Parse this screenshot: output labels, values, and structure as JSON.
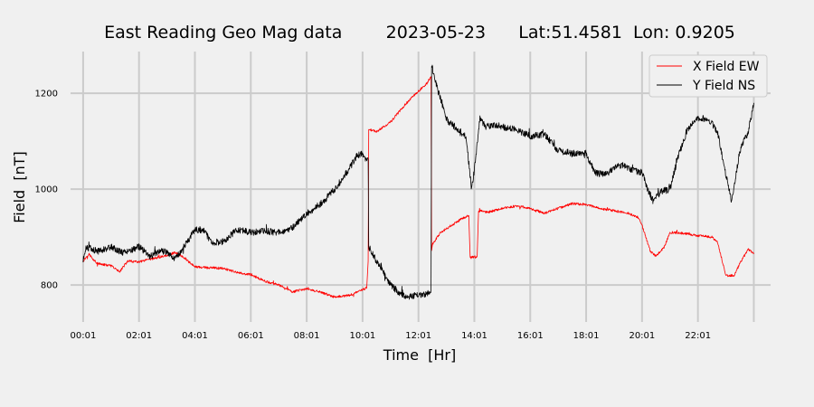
{
  "chart_data": {
    "type": "line",
    "title": "East Reading Geo Mag data        2023-05-23      Lat:51.4581  Lon: 0.9205",
    "xlabel": "Time  [Hr]",
    "ylabel": "Field  [nT]",
    "xlim": [
      -0.45,
      24.6
    ],
    "ylim": [
      723,
      1287
    ],
    "grid": true,
    "legend_position": "top-right",
    "x_ticks": [
      {
        "value": 0,
        "label": "00:01"
      },
      {
        "value": 2,
        "label": "02:01"
      },
      {
        "value": 4,
        "label": "04:01"
      },
      {
        "value": 6,
        "label": "06:01"
      },
      {
        "value": 8,
        "label": "08:01"
      },
      {
        "value": 10,
        "label": "10:01"
      },
      {
        "value": 12,
        "label": "12:01"
      },
      {
        "value": 14,
        "label": "14:01"
      },
      {
        "value": 16,
        "label": "16:01"
      },
      {
        "value": 18,
        "label": "18:01"
      },
      {
        "value": 20,
        "label": "20:01"
      },
      {
        "value": 22,
        "label": "22:01"
      },
      {
        "value": 24,
        "label": ""
      }
    ],
    "y_ticks": [
      {
        "value": 800,
        "label": "800"
      },
      {
        "value": 1000,
        "label": "1000"
      },
      {
        "value": 1200,
        "label": "1200"
      }
    ],
    "series": [
      {
        "name": "X Field EW",
        "color": "#ff0000",
        "x": [
          0,
          0.2,
          0.5,
          1.0,
          1.3,
          1.6,
          2.0,
          2.5,
          3.0,
          3.3,
          3.6,
          4.0,
          4.5,
          5.0,
          5.5,
          6.0,
          6.5,
          7.0,
          7.5,
          8.0,
          8.5,
          9.0,
          9.5,
          10.0,
          10.15,
          10.2,
          10.22,
          10.5,
          11.0,
          11.5,
          12.0,
          12.3,
          12.45,
          12.47,
          12.5,
          12.8,
          13.2,
          13.6,
          13.8,
          13.85,
          14.1,
          14.15,
          14.5,
          15.0,
          15.5,
          16.0,
          16.5,
          17.0,
          17.5,
          18.0,
          18.5,
          19.0,
          19.5,
          19.9,
          20.0,
          20.3,
          20.5,
          20.8,
          21.0,
          21.5,
          22.0,
          22.5,
          22.7,
          23.0,
          23.3,
          23.5,
          23.8,
          24.0
        ],
        "y": [
          850,
          865,
          845,
          840,
          828,
          850,
          848,
          855,
          862,
          868,
          858,
          838,
          836,
          835,
          826,
          822,
          808,
          800,
          786,
          792,
          785,
          775,
          778,
          790,
          795,
          850,
          1125,
          1120,
          1140,
          1175,
          1205,
          1220,
          1235,
          872,
          885,
          910,
          925,
          940,
          945,
          857,
          860,
          955,
          952,
          960,
          965,
          960,
          950,
          960,
          970,
          968,
          960,
          955,
          950,
          940,
          925,
          870,
          860,
          880,
          910,
          908,
          903,
          900,
          890,
          820,
          820,
          845,
          875,
          865
        ]
      },
      {
        "name": "Y Field NS",
        "color": "#000000",
        "x": [
          0,
          0.1,
          0.3,
          0.5,
          1.0,
          1.3,
          1.5,
          2.0,
          2.4,
          2.7,
          3.0,
          3.3,
          3.6,
          4.0,
          4.3,
          4.6,
          5.0,
          5.5,
          6.0,
          6.5,
          7.0,
          7.5,
          8.0,
          8.3,
          8.6,
          9.0,
          9.5,
          9.8,
          10.0,
          10.1,
          10.2,
          10.22,
          10.5,
          11.0,
          11.3,
          11.6,
          12.0,
          12.3,
          12.45,
          12.47,
          12.6,
          13.0,
          13.4,
          13.7,
          13.9,
          14.0,
          14.2,
          14.4,
          14.7,
          15.0,
          15.5,
          16.0,
          16.5,
          17.0,
          17.5,
          18.0,
          18.3,
          18.7,
          19.0,
          19.3,
          19.6,
          20.0,
          20.2,
          20.4,
          20.7,
          21.0,
          21.3,
          21.6,
          22.0,
          22.4,
          22.7,
          23.0,
          23.2,
          23.5,
          23.8,
          24.0
        ],
        "y": [
          850,
          880,
          875,
          870,
          880,
          870,
          868,
          880,
          860,
          870,
          870,
          855,
          880,
          915,
          915,
          890,
          890,
          915,
          910,
          912,
          910,
          920,
          950,
          960,
          975,
          1000,
          1040,
          1070,
          1075,
          1065,
          1060,
          880,
          850,
          800,
          785,
          775,
          780,
          780,
          790,
          1260,
          1225,
          1145,
          1125,
          1110,
          1000,
          1040,
          1150,
          1130,
          1135,
          1130,
          1125,
          1110,
          1115,
          1080,
          1075,
          1075,
          1035,
          1030,
          1045,
          1050,
          1040,
          1035,
          1000,
          975,
          995,
          1000,
          1070,
          1120,
          1150,
          1145,
          1120,
          1030,
          975,
          1080,
          1120,
          1180
        ]
      }
    ]
  }
}
